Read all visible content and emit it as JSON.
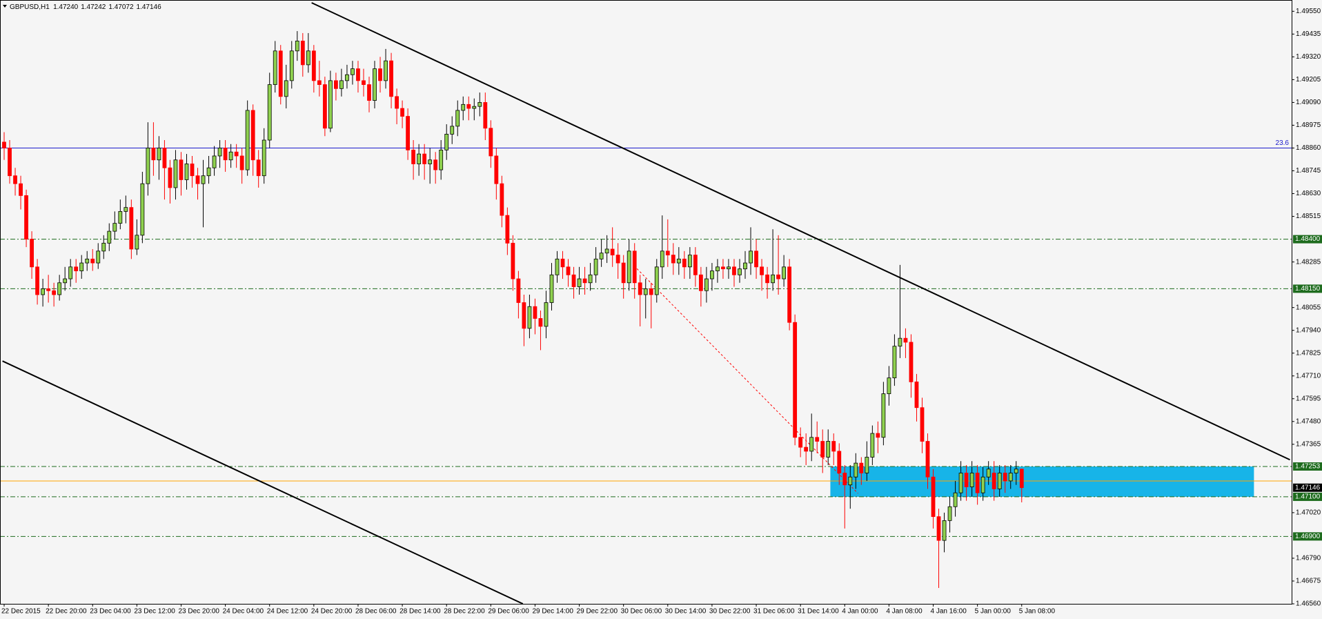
{
  "chart_data": {
    "type": "candlestick",
    "title": "GBPUSD,H1",
    "last_bar_labels": {
      "open": "1.47240",
      "high": "1.47242",
      "low": "1.47072",
      "close": "1.47146"
    },
    "categories": [
      "22 Dec 2015",
      null,
      null,
      null,
      null,
      null,
      null,
      null,
      "22 Dec 20:00",
      null,
      null,
      null,
      null,
      null,
      null,
      null,
      "23 Dec 04:00",
      null,
      null,
      null,
      null,
      null,
      null,
      null,
      "23 Dec 12:00",
      null,
      null,
      null,
      null,
      null,
      null,
      null,
      "23 Dec 20:00",
      null,
      null,
      null,
      null,
      null,
      null,
      null,
      "24 Dec 04:00",
      null,
      null,
      null,
      null,
      null,
      null,
      null,
      "24 Dec 12:00",
      null,
      null,
      null,
      null,
      null,
      null,
      null,
      "24 Dec 20:00",
      null,
      null,
      null,
      null,
      null,
      null,
      null,
      "28 Dec 06:00",
      null,
      null,
      null,
      null,
      null,
      null,
      null,
      "28 Dec 14:00",
      null,
      null,
      null,
      null,
      null,
      null,
      null,
      "28 Dec 22:00",
      null,
      null,
      null,
      null,
      null,
      null,
      null,
      "29 Dec 06:00",
      null,
      null,
      null,
      null,
      null,
      null,
      null,
      "29 Dec 14:00",
      null,
      null,
      null,
      null,
      null,
      null,
      null,
      "29 Dec 22:00",
      null,
      null,
      null,
      null,
      null,
      null,
      null,
      "30 Dec 06:00",
      null,
      null,
      null,
      null,
      null,
      null,
      null,
      "30 Dec 14:00",
      null,
      null,
      null,
      null,
      null,
      null,
      null,
      "30 Dec 22:00",
      null,
      null,
      null,
      null,
      null,
      null,
      null,
      "31 Dec 06:00",
      null,
      null,
      null,
      null,
      null,
      null,
      null,
      "31 Dec 14:00",
      null,
      null,
      null,
      null,
      null,
      null,
      null,
      "4 Jan 00:00",
      null,
      null,
      null,
      null,
      null,
      null,
      null,
      "4 Jan 08:00",
      null,
      null,
      null,
      null,
      null,
      null,
      null,
      "4 Jan 16:00",
      null,
      null,
      null,
      null,
      null,
      null,
      null,
      "5 Jan 00:00",
      null,
      null,
      null,
      null,
      null,
      null,
      null,
      "5 Jan 08:00"
    ],
    "open": [
      1.4889,
      1.4886,
      1.4872,
      1.4868,
      1.4862,
      1.484,
      1.4826,
      1.4812,
      1.4815,
      1.4814,
      1.4812,
      1.4818,
      1.482,
      1.4826,
      1.4824,
      1.4828,
      1.483,
      1.4828,
      1.4834,
      1.4838,
      1.4844,
      1.4848,
      1.4854,
      1.4856,
      1.4835,
      1.4842,
      1.4868,
      1.4886,
      1.488,
      1.4886,
      1.4876,
      1.4866,
      1.488,
      1.487,
      1.4878,
      1.4872,
      1.4868,
      1.4872,
      1.4876,
      1.4882,
      1.4886,
      1.488,
      1.4884,
      1.4882,
      1.4875,
      1.4905,
      1.488,
      1.4872,
      1.489,
      1.4918,
      1.4935,
      1.4912,
      1.492,
      1.4935,
      1.494,
      1.4928,
      1.4935,
      1.492,
      1.4918,
      1.4896,
      1.492,
      1.4916,
      1.492,
      1.4923,
      1.4926,
      1.492,
      1.4918,
      1.491,
      1.4926,
      1.492,
      1.493,
      1.4912,
      1.4906,
      1.4902,
      1.4885,
      1.4878,
      1.4883,
      1.4878,
      1.488,
      1.4875,
      1.4885,
      1.4893,
      1.4897,
      1.4905,
      1.4908,
      1.4906,
      1.4907,
      1.4909,
      1.4896,
      1.4882,
      1.4868,
      1.4852,
      1.4838,
      1.482,
      1.4808,
      1.4795,
      1.4806,
      1.48,
      1.4796,
      1.4808,
      1.4822,
      1.483,
      1.4826,
      1.4822,
      1.4816,
      1.482,
      1.4818,
      1.4822,
      1.483,
      1.4833,
      1.4835,
      1.4832,
      1.4828,
      1.4818,
      1.4834,
      1.4818,
      1.4812,
      1.4815,
      1.4812,
      1.4826,
      1.4834,
      1.4832,
      1.4828,
      1.483,
      1.4826,
      1.4832,
      1.4822,
      1.4814,
      1.482,
      1.4824,
      1.4826,
      1.4825,
      1.4826,
      1.4822,
      1.4825,
      1.4828,
      1.4834,
      1.4826,
      1.4822,
      1.4818,
      1.4822,
      1.482,
      1.4826,
      1.4798,
      1.474,
      1.4735,
      1.4733,
      1.474,
      1.4738,
      1.473,
      1.4738,
      1.4733,
      1.4722,
      1.4716,
      1.472,
      1.4727,
      1.4722,
      1.473,
      1.4742,
      1.474,
      1.4762,
      1.477,
      1.4786,
      1.479,
      1.4788,
      1.4768,
      1.4755,
      1.4738,
      1.472,
      1.47,
      1.4688,
      1.4698,
      1.4705,
      1.4712,
      1.4722,
      1.4715,
      1.4722,
      1.4712,
      1.472,
      1.4722,
      1.4714,
      1.4722,
      1.4718,
      1.4722,
      1.4724
    ],
    "high": [
      1.4894,
      1.489,
      1.4876,
      1.4872,
      1.4865,
      1.4844,
      1.483,
      1.482,
      1.4822,
      1.4818,
      1.4822,
      1.4826,
      1.483,
      1.483,
      1.4832,
      1.4834,
      1.4835,
      1.4838,
      1.4842,
      1.4848,
      1.4854,
      1.486,
      1.4862,
      1.486,
      1.485,
      1.4874,
      1.4899,
      1.4899,
      1.4892,
      1.489,
      1.488,
      1.4885,
      1.4884,
      1.4883,
      1.4882,
      1.4876,
      1.488,
      1.4882,
      1.4887,
      1.489,
      1.489,
      1.4888,
      1.4888,
      1.4886,
      1.491,
      1.4908,
      1.4885,
      1.4896,
      1.4924,
      1.494,
      1.4938,
      1.4928,
      1.494,
      1.4945,
      1.4944,
      1.4944,
      1.4938,
      1.493,
      1.4922,
      1.4925,
      1.4924,
      1.4926,
      1.4928,
      1.493,
      1.493,
      1.4926,
      1.4922,
      1.493,
      1.4932,
      1.4936,
      1.4934,
      1.4916,
      1.491,
      1.4906,
      1.489,
      1.4888,
      1.4888,
      1.4886,
      1.4884,
      1.489,
      1.4898,
      1.4902,
      1.491,
      1.4912,
      1.4912,
      1.4911,
      1.4914,
      1.4914,
      1.49,
      1.4886,
      1.4872,
      1.4856,
      1.4842,
      1.4824,
      1.4812,
      1.4812,
      1.481,
      1.4804,
      1.4814,
      1.4828,
      1.4834,
      1.4834,
      1.483,
      1.4826,
      1.4826,
      1.4826,
      1.4828,
      1.4836,
      1.484,
      1.4842,
      1.4846,
      1.4838,
      1.4832,
      1.484,
      1.4838,
      1.4822,
      1.482,
      1.4818,
      1.483,
      1.4852,
      1.485,
      1.4838,
      1.4836,
      1.4834,
      1.4836,
      1.4836,
      1.4826,
      1.4826,
      1.4828,
      1.483,
      1.483,
      1.483,
      1.483,
      1.483,
      1.4834,
      1.4846,
      1.484,
      1.483,
      1.4826,
      1.4845,
      1.4842,
      1.4832,
      1.483,
      1.4802,
      1.4745,
      1.4742,
      1.4752,
      1.4748,
      1.4744,
      1.4744,
      1.4742,
      1.4737,
      1.4726,
      1.4726,
      1.4732,
      1.473,
      1.4738,
      1.4746,
      1.4748,
      1.4768,
      1.4776,
      1.4792,
      1.4827,
      1.4795,
      1.4792,
      1.4772,
      1.476,
      1.4742,
      1.4724,
      1.4704,
      1.4702,
      1.471,
      1.4718,
      1.4728,
      1.4726,
      1.4728,
      1.4726,
      1.4725,
      1.4728,
      1.4728,
      1.4726,
      1.4726,
      1.4726,
      1.4728,
      1.47242
    ],
    "low": [
      1.488,
      1.4868,
      1.4862,
      1.4855,
      1.4836,
      1.482,
      1.4807,
      1.4806,
      1.4808,
      1.4806,
      1.4809,
      1.4814,
      1.4816,
      1.4818,
      1.482,
      1.4824,
      1.4824,
      1.4825,
      1.483,
      1.4834,
      1.484,
      1.4845,
      1.4848,
      1.483,
      1.4832,
      1.4838,
      1.4862,
      1.4872,
      1.487,
      1.486,
      1.4858,
      1.486,
      1.4862,
      1.4865,
      1.4866,
      1.486,
      1.4846,
      1.4868,
      1.4872,
      1.4876,
      1.4874,
      1.4876,
      1.4876,
      1.4868,
      1.4872,
      1.4872,
      1.4866,
      1.4868,
      1.4886,
      1.4914,
      1.4908,
      1.4906,
      1.4916,
      1.493,
      1.4922,
      1.4924,
      1.4914,
      1.4912,
      1.4892,
      1.4894,
      1.491,
      1.4912,
      1.4916,
      1.4918,
      1.4914,
      1.4912,
      1.4904,
      1.4906,
      1.4914,
      1.4916,
      1.4906,
      1.4898,
      1.4896,
      1.488,
      1.487,
      1.4872,
      1.487,
      1.4868,
      1.4868,
      1.487,
      1.488,
      1.4888,
      1.4892,
      1.49,
      1.49,
      1.49,
      1.4902,
      1.489,
      1.4876,
      1.486,
      1.4846,
      1.4832,
      1.4814,
      1.48,
      1.4786,
      1.479,
      1.4792,
      1.4784,
      1.479,
      1.4804,
      1.4818,
      1.482,
      1.4816,
      1.481,
      1.4812,
      1.4812,
      1.4814,
      1.4818,
      1.4826,
      1.4828,
      1.4826,
      1.482,
      1.481,
      1.4814,
      1.481,
      1.4796,
      1.48,
      1.4795,
      1.4808,
      1.482,
      1.4826,
      1.4822,
      1.4822,
      1.482,
      1.482,
      1.4816,
      1.4806,
      1.4808,
      1.4814,
      1.4818,
      1.482,
      1.482,
      1.4816,
      1.4818,
      1.482,
      1.4822,
      1.482,
      1.4814,
      1.481,
      1.4814,
      1.4812,
      1.4816,
      1.4794,
      1.4736,
      1.473,
      1.4726,
      1.4728,
      1.4732,
      1.4722,
      1.4726,
      1.4726,
      1.4716,
      1.4694,
      1.4704,
      1.4714,
      1.4716,
      1.4718,
      1.4726,
      1.4732,
      1.4736,
      1.4756,
      1.4766,
      1.478,
      1.478,
      1.476,
      1.4748,
      1.4732,
      1.4714,
      1.4694,
      1.4664,
      1.4682,
      1.4692,
      1.47,
      1.4708,
      1.4708,
      1.471,
      1.4706,
      1.4708,
      1.4716,
      1.4708,
      1.471,
      1.4712,
      1.4714,
      1.4716,
      1.47072
    ],
    "close": [
      1.4886,
      1.4872,
      1.4868,
      1.4862,
      1.484,
      1.4826,
      1.4812,
      1.4815,
      1.4814,
      1.4812,
      1.4818,
      1.482,
      1.4826,
      1.4824,
      1.4828,
      1.483,
      1.4828,
      1.4834,
      1.4838,
      1.4844,
      1.4848,
      1.4854,
      1.4856,
      1.4835,
      1.4842,
      1.4868,
      1.4886,
      1.488,
      1.4886,
      1.4876,
      1.4866,
      1.488,
      1.487,
      1.4878,
      1.4872,
      1.4868,
      1.4872,
      1.4876,
      1.4882,
      1.4886,
      1.488,
      1.4884,
      1.4882,
      1.4875,
      1.4905,
      1.488,
      1.4872,
      1.489,
      1.4918,
      1.4935,
      1.4912,
      1.492,
      1.4935,
      1.494,
      1.4928,
      1.4935,
      1.492,
      1.4918,
      1.4896,
      1.492,
      1.4916,
      1.492,
      1.4923,
      1.4926,
      1.492,
      1.4918,
      1.491,
      1.4926,
      1.492,
      1.493,
      1.4912,
      1.4906,
      1.4902,
      1.4885,
      1.4878,
      1.4883,
      1.4878,
      1.488,
      1.4875,
      1.4885,
      1.4893,
      1.4897,
      1.4905,
      1.4908,
      1.4906,
      1.4907,
      1.4909,
      1.4896,
      1.4882,
      1.4868,
      1.4852,
      1.4838,
      1.482,
      1.4808,
      1.4795,
      1.4806,
      1.48,
      1.4796,
      1.4808,
      1.4822,
      1.483,
      1.4826,
      1.4822,
      1.4816,
      1.482,
      1.4818,
      1.4822,
      1.483,
      1.4833,
      1.4835,
      1.4832,
      1.4828,
      1.4818,
      1.4834,
      1.4818,
      1.4812,
      1.4815,
      1.4812,
      1.4826,
      1.4834,
      1.4832,
      1.4828,
      1.483,
      1.4826,
      1.4832,
      1.4822,
      1.4814,
      1.482,
      1.4824,
      1.4826,
      1.4825,
      1.4826,
      1.4822,
      1.4825,
      1.4828,
      1.4834,
      1.4826,
      1.4822,
      1.4818,
      1.4822,
      1.482,
      1.4826,
      1.4798,
      1.474,
      1.4735,
      1.4733,
      1.474,
      1.4738,
      1.473,
      1.4738,
      1.4733,
      1.4722,
      1.4716,
      1.472,
      1.4727,
      1.4722,
      1.473,
      1.4742,
      1.474,
      1.4762,
      1.477,
      1.4786,
      1.479,
      1.4788,
      1.4768,
      1.4755,
      1.4738,
      1.472,
      1.47,
      1.4688,
      1.4698,
      1.4705,
      1.4712,
      1.4722,
      1.4715,
      1.4722,
      1.4712,
      1.472,
      1.4724,
      1.4714,
      1.4722,
      1.4718,
      1.4722,
      1.4724,
      1.47146
    ],
    "up_color": "#8fd14f",
    "down_color": "#ff0000",
    "ylim": [
      1.4656,
      1.49593
    ],
    "yticks": [
      {
        "value": 1.4955,
        "label": "1.49550"
      },
      1.49435,
      {
        "value": 1.4932,
        "label": "1.49320"
      },
      1.49205,
      {
        "value": 1.4909,
        "label": "1.49090"
      },
      1.48975,
      {
        "value": 1.4886,
        "label": "1.48860"
      },
      1.48745,
      {
        "value": 1.4863,
        "label": "1.48630"
      },
      1.48515,
      1.48285,
      1.48055,
      {
        "value": 1.4794,
        "label": "1.47940"
      },
      1.47825,
      {
        "value": 1.4771,
        "label": "1.47710"
      },
      1.47595,
      {
        "value": 1.4748,
        "label": "1.47480"
      },
      1.47365,
      {
        "value": 1.4702,
        "label": "1.47020"
      },
      {
        "value": 1.4679,
        "label": "1.46790"
      },
      1.46675,
      {
        "value": 1.4656,
        "label": "1.46560"
      }
    ],
    "levels": [
      {
        "value": 1.484,
        "label": "1.48400",
        "color": "#1d6b1d"
      },
      {
        "value": 1.4815,
        "label": "1.48150",
        "color": "#1d6b1d"
      },
      {
        "value": 1.47253,
        "label": "1.47253",
        "color": "#1d6b1d"
      },
      {
        "value": 1.471,
        "label": "1.47100",
        "color": "#1d6b1d"
      },
      {
        "value": 1.469,
        "label": "1.46900",
        "color": "#1d6b1d"
      }
    ],
    "fib_level": {
      "value": 1.4886,
      "label": "23.6",
      "color": "#1a1acc"
    },
    "price_line": {
      "value": 1.4718,
      "color": "#ffa500"
    },
    "zone": {
      "from": 1.47253,
      "to": 1.471,
      "x": [
        149.4,
        226
      ],
      "color": "#17b4e8"
    },
    "trendlines": [
      {
        "points": [
          [
            55.6,
            1.49593
          ],
          [
            232.5,
            1.47287
          ]
        ],
        "color": "#000000",
        "style": "solid"
      },
      {
        "points": [
          [
            -0.3,
            1.47785
          ],
          [
            93.8,
            1.4656
          ]
        ],
        "color": "#000000",
        "style": "solid"
      },
      {
        "points": [
          [
            113.9,
            1.48266
          ],
          [
            154.4,
            1.47117
          ]
        ],
        "color": "#ff0000",
        "style": "dotted"
      }
    ]
  }
}
